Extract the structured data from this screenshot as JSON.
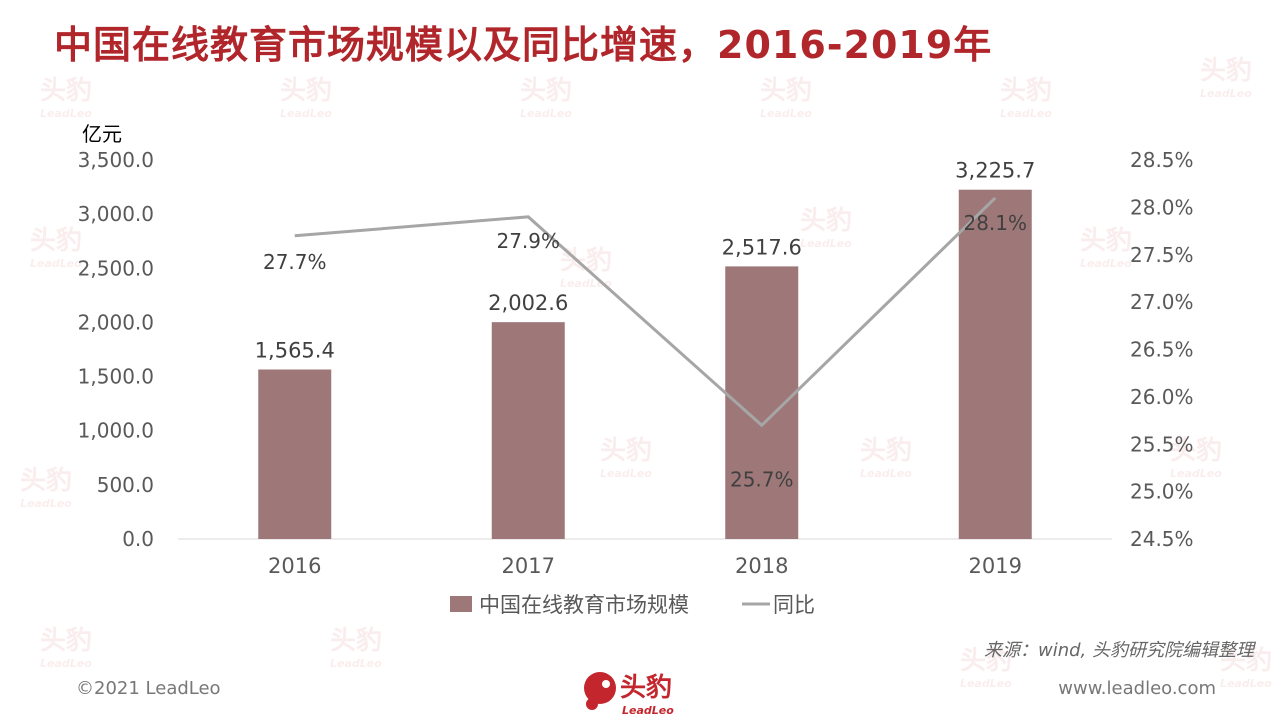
{
  "page": {
    "title": "中国在线教育市场规模以及同比增速，2016-2019年",
    "source": "来源：wind,  头豹研究院编辑整理",
    "copyright": "©2021 LeadLeo",
    "website": "www.leadleo.com",
    "logo_text": "头豹",
    "logo_subtext": "LeadLeo"
  },
  "colors": {
    "title": "#b0262a",
    "bar": "#9e7878",
    "line": "#a6a6a6",
    "brand": "#c4262e"
  },
  "chart_data": {
    "type": "bar",
    "categories": [
      "2016",
      "2017",
      "2018",
      "2019"
    ],
    "left_axis": {
      "unit": "亿元",
      "min": 0,
      "max": 3500,
      "step": 500,
      "tick_labels": [
        "0.0",
        "500.0",
        "1,000.0",
        "1,500.0",
        "2,000.0",
        "2,500.0",
        "3,000.0",
        "3,500.0"
      ]
    },
    "right_axis": {
      "min": 24.5,
      "max": 28.5,
      "step": 0.5,
      "tick_labels": [
        "24.5%",
        "25.0%",
        "25.5%",
        "26.0%",
        "26.5%",
        "27.0%",
        "27.5%",
        "28.0%",
        "28.5%"
      ]
    },
    "series": [
      {
        "name": "中国在线教育市场规模",
        "type": "bar",
        "axis": "left",
        "values": [
          1565.4,
          2002.6,
          2517.6,
          3225.7
        ],
        "labels": [
          "1,565.4",
          "2,002.6",
          "2,517.6",
          "3,225.7"
        ]
      },
      {
        "name": "同比",
        "type": "line",
        "axis": "right",
        "values": [
          27.7,
          27.9,
          25.7,
          28.1
        ],
        "labels": [
          "27.7%",
          "27.9%",
          "25.7%",
          "28.1%"
        ]
      }
    ],
    "legend_position": "bottom",
    "grid": false
  }
}
